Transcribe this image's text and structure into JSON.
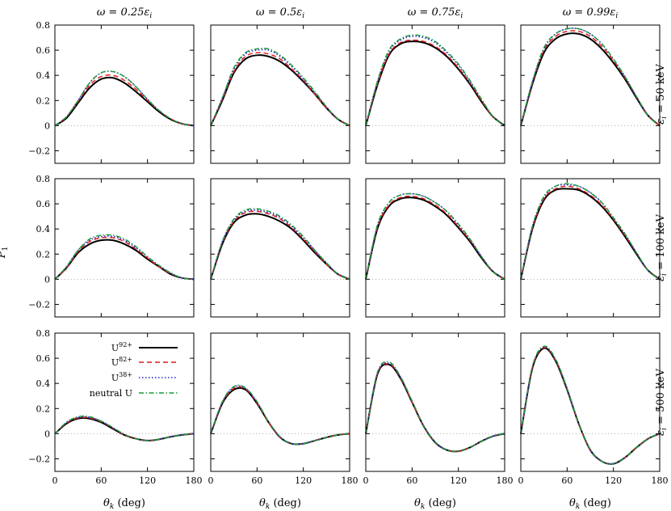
{
  "figure": {
    "col_titles": [
      "ω = 0.25ε",
      "ω = 0.5ε",
      "ω = 0.75ε",
      "ω = 0.99ε"
    ],
    "col_title_sub": "i",
    "row_labels": [
      "ε",
      "ε",
      "ε"
    ],
    "row_label_sub": "i",
    "row_label_values": [
      " = 50 keV",
      " = 100 keV",
      " = 500 keV"
    ],
    "y_axis_label": "P",
    "y_axis_label_sub": "1",
    "x_axis_label": "θ",
    "x_axis_label_sub": "k",
    "x_axis_unit": " (deg)"
  },
  "legend": {
    "entries": [
      {
        "base": "U",
        "sup": "92+"
      },
      {
        "base": "U",
        "sup": "82+"
      },
      {
        "base": "U",
        "sup": "38+"
      },
      {
        "base": "neutral U",
        "sup": ""
      }
    ]
  },
  "styles": {
    "series_colors": [
      "#000000",
      "#e31a1c",
      "#1f1fcc",
      "#1a9a3a"
    ],
    "series_dash": [
      "",
      "6 4",
      "1.5 2.5",
      "6 2.5 1.5 2.5"
    ],
    "series_widths": [
      2.0,
      1.5,
      1.5,
      1.5
    ]
  },
  "chart_data": {
    "type": "line",
    "xlim": [
      0,
      180
    ],
    "ylim": [
      -0.3,
      0.8
    ],
    "xticks": [
      0,
      60,
      120,
      180
    ],
    "yticks": [
      -0.2,
      0,
      0.2,
      0.4,
      0.6,
      0.8
    ],
    "x": [
      0,
      15,
      30,
      45,
      60,
      75,
      90,
      105,
      120,
      135,
      150,
      165,
      180
    ],
    "series_names": [
      "U92+",
      "U82+",
      "U38+",
      "neutral U"
    ],
    "panels": [
      {
        "row": 0,
        "col": 0,
        "series": [
          [
            0,
            0.06,
            0.18,
            0.3,
            0.37,
            0.38,
            0.34,
            0.27,
            0.19,
            0.11,
            0.05,
            0.015,
            0
          ],
          [
            0,
            0.07,
            0.19,
            0.32,
            0.39,
            0.4,
            0.36,
            0.29,
            0.2,
            0.12,
            0.055,
            0.015,
            0
          ],
          [
            0,
            0.07,
            0.2,
            0.34,
            0.42,
            0.43,
            0.39,
            0.31,
            0.21,
            0.12,
            0.055,
            0.015,
            0
          ],
          [
            0,
            0.07,
            0.2,
            0.34,
            0.42,
            0.43,
            0.39,
            0.31,
            0.21,
            0.12,
            0.055,
            0.015,
            0
          ]
        ]
      },
      {
        "row": 0,
        "col": 1,
        "series": [
          [
            0,
            0.2,
            0.42,
            0.53,
            0.56,
            0.55,
            0.51,
            0.44,
            0.35,
            0.25,
            0.14,
            0.05,
            0
          ],
          [
            0,
            0.21,
            0.43,
            0.55,
            0.58,
            0.57,
            0.53,
            0.45,
            0.36,
            0.25,
            0.14,
            0.05,
            0
          ],
          [
            0,
            0.22,
            0.45,
            0.57,
            0.6,
            0.6,
            0.55,
            0.47,
            0.37,
            0.26,
            0.15,
            0.05,
            0
          ],
          [
            0,
            0.22,
            0.46,
            0.58,
            0.61,
            0.61,
            0.56,
            0.48,
            0.38,
            0.27,
            0.15,
            0.05,
            0
          ]
        ]
      },
      {
        "row": 0,
        "col": 2,
        "series": [
          [
            0,
            0.32,
            0.56,
            0.65,
            0.67,
            0.66,
            0.62,
            0.55,
            0.45,
            0.33,
            0.19,
            0.07,
            0
          ],
          [
            0,
            0.33,
            0.57,
            0.66,
            0.68,
            0.67,
            0.63,
            0.56,
            0.46,
            0.34,
            0.2,
            0.07,
            0
          ],
          [
            0,
            0.35,
            0.59,
            0.68,
            0.71,
            0.7,
            0.66,
            0.58,
            0.48,
            0.35,
            0.21,
            0.07,
            0
          ],
          [
            0,
            0.35,
            0.6,
            0.69,
            0.72,
            0.71,
            0.67,
            0.59,
            0.49,
            0.36,
            0.21,
            0.07,
            0
          ]
        ]
      },
      {
        "row": 0,
        "col": 3,
        "series": [
          [
            0,
            0.33,
            0.58,
            0.69,
            0.73,
            0.73,
            0.69,
            0.61,
            0.5,
            0.37,
            0.22,
            0.08,
            0
          ],
          [
            0,
            0.34,
            0.6,
            0.71,
            0.75,
            0.75,
            0.71,
            0.63,
            0.52,
            0.38,
            0.23,
            0.08,
            0
          ],
          [
            0,
            0.35,
            0.61,
            0.73,
            0.77,
            0.77,
            0.73,
            0.65,
            0.53,
            0.39,
            0.23,
            0.08,
            0
          ],
          [
            0,
            0.35,
            0.62,
            0.73,
            0.77,
            0.77,
            0.73,
            0.65,
            0.53,
            0.39,
            0.23,
            0.08,
            0
          ]
        ]
      },
      {
        "row": 1,
        "col": 0,
        "series": [
          [
            0,
            0.09,
            0.21,
            0.28,
            0.31,
            0.31,
            0.28,
            0.23,
            0.16,
            0.1,
            0.04,
            0.01,
            0
          ],
          [
            0,
            0.09,
            0.22,
            0.3,
            0.33,
            0.33,
            0.3,
            0.24,
            0.17,
            0.1,
            0.045,
            0.01,
            0
          ],
          [
            0,
            0.1,
            0.23,
            0.31,
            0.34,
            0.34,
            0.31,
            0.25,
            0.18,
            0.11,
            0.05,
            0.01,
            0
          ],
          [
            0,
            0.1,
            0.23,
            0.32,
            0.35,
            0.35,
            0.32,
            0.26,
            0.18,
            0.11,
            0.05,
            0.01,
            0
          ]
        ]
      },
      {
        "row": 1,
        "col": 1,
        "series": [
          [
            0,
            0.28,
            0.45,
            0.51,
            0.52,
            0.5,
            0.46,
            0.4,
            0.31,
            0.21,
            0.12,
            0.04,
            0
          ],
          [
            0,
            0.29,
            0.46,
            0.53,
            0.54,
            0.52,
            0.48,
            0.41,
            0.32,
            0.22,
            0.12,
            0.04,
            0
          ],
          [
            0,
            0.3,
            0.47,
            0.54,
            0.55,
            0.53,
            0.49,
            0.42,
            0.33,
            0.23,
            0.13,
            0.04,
            0
          ],
          [
            0,
            0.3,
            0.48,
            0.55,
            0.56,
            0.54,
            0.5,
            0.43,
            0.34,
            0.23,
            0.13,
            0.04,
            0
          ]
        ]
      },
      {
        "row": 1,
        "col": 2,
        "series": [
          [
            0,
            0.4,
            0.58,
            0.64,
            0.65,
            0.63,
            0.58,
            0.51,
            0.41,
            0.3,
            0.17,
            0.06,
            0
          ],
          [
            0,
            0.41,
            0.59,
            0.65,
            0.66,
            0.64,
            0.59,
            0.52,
            0.42,
            0.31,
            0.18,
            0.06,
            0
          ],
          [
            0,
            0.42,
            0.61,
            0.67,
            0.68,
            0.66,
            0.61,
            0.54,
            0.43,
            0.32,
            0.18,
            0.06,
            0
          ],
          [
            0,
            0.43,
            0.61,
            0.67,
            0.68,
            0.66,
            0.61,
            0.54,
            0.44,
            0.32,
            0.18,
            0.06,
            0
          ]
        ]
      },
      {
        "row": 1,
        "col": 3,
        "series": [
          [
            0,
            0.4,
            0.63,
            0.71,
            0.72,
            0.71,
            0.66,
            0.58,
            0.47,
            0.34,
            0.2,
            0.07,
            0
          ],
          [
            0,
            0.41,
            0.64,
            0.72,
            0.74,
            0.72,
            0.67,
            0.59,
            0.48,
            0.35,
            0.21,
            0.07,
            0
          ],
          [
            0,
            0.42,
            0.65,
            0.74,
            0.75,
            0.74,
            0.69,
            0.61,
            0.49,
            0.36,
            0.21,
            0.07,
            0
          ],
          [
            0,
            0.42,
            0.66,
            0.74,
            0.76,
            0.74,
            0.69,
            0.61,
            0.49,
            0.36,
            0.21,
            0.07,
            0
          ]
        ]
      },
      {
        "row": 2,
        "col": 0,
        "series": [
          [
            0,
            0.08,
            0.12,
            0.12,
            0.09,
            0.04,
            -0.01,
            -0.04,
            -0.055,
            -0.045,
            -0.025,
            -0.01,
            0
          ],
          [
            0,
            0.085,
            0.125,
            0.125,
            0.095,
            0.045,
            -0.01,
            -0.04,
            -0.055,
            -0.045,
            -0.025,
            -0.01,
            0
          ],
          [
            0,
            0.09,
            0.13,
            0.13,
            0.1,
            0.045,
            -0.005,
            -0.04,
            -0.055,
            -0.045,
            -0.025,
            -0.01,
            0
          ],
          [
            0,
            0.09,
            0.135,
            0.135,
            0.1,
            0.05,
            -0.005,
            -0.04,
            -0.055,
            -0.045,
            -0.025,
            -0.01,
            0
          ]
        ]
      },
      {
        "row": 2,
        "col": 1,
        "series": [
          [
            0,
            0.24,
            0.35,
            0.35,
            0.24,
            0.09,
            -0.03,
            -0.08,
            -0.08,
            -0.055,
            -0.03,
            -0.01,
            0
          ],
          [
            0,
            0.245,
            0.36,
            0.355,
            0.245,
            0.09,
            -0.03,
            -0.08,
            -0.08,
            -0.055,
            -0.03,
            -0.01,
            0
          ],
          [
            0,
            0.25,
            0.37,
            0.36,
            0.25,
            0.095,
            -0.03,
            -0.08,
            -0.08,
            -0.055,
            -0.03,
            -0.01,
            0
          ],
          [
            0,
            0.255,
            0.375,
            0.365,
            0.255,
            0.095,
            -0.025,
            -0.08,
            -0.08,
            -0.055,
            -0.03,
            -0.01,
            0
          ]
        ]
      },
      {
        "row": 2,
        "col": 2,
        "series": [
          [
            0,
            0.47,
            0.55,
            0.44,
            0.25,
            0.06,
            -0.07,
            -0.13,
            -0.14,
            -0.11,
            -0.06,
            -0.02,
            0
          ],
          [
            0,
            0.475,
            0.555,
            0.445,
            0.25,
            0.06,
            -0.07,
            -0.13,
            -0.14,
            -0.11,
            -0.06,
            -0.02,
            0
          ],
          [
            0,
            0.48,
            0.56,
            0.45,
            0.255,
            0.065,
            -0.07,
            -0.13,
            -0.14,
            -0.11,
            -0.06,
            -0.02,
            0
          ],
          [
            0,
            0.485,
            0.57,
            0.455,
            0.26,
            0.065,
            -0.065,
            -0.13,
            -0.14,
            -0.11,
            -0.06,
            -0.02,
            0
          ]
        ]
      },
      {
        "row": 2,
        "col": 3,
        "series": [
          [
            0,
            0.52,
            0.68,
            0.58,
            0.35,
            0.08,
            -0.13,
            -0.22,
            -0.24,
            -0.19,
            -0.11,
            -0.04,
            0
          ],
          [
            0,
            0.525,
            0.685,
            0.585,
            0.355,
            0.08,
            -0.13,
            -0.22,
            -0.24,
            -0.19,
            -0.11,
            -0.04,
            0
          ],
          [
            0,
            0.53,
            0.69,
            0.59,
            0.36,
            0.085,
            -0.13,
            -0.22,
            -0.24,
            -0.19,
            -0.11,
            -0.04,
            0
          ],
          [
            0,
            0.535,
            0.695,
            0.595,
            0.36,
            0.085,
            -0.125,
            -0.22,
            -0.24,
            -0.19,
            -0.11,
            -0.04,
            0
          ]
        ]
      }
    ]
  }
}
